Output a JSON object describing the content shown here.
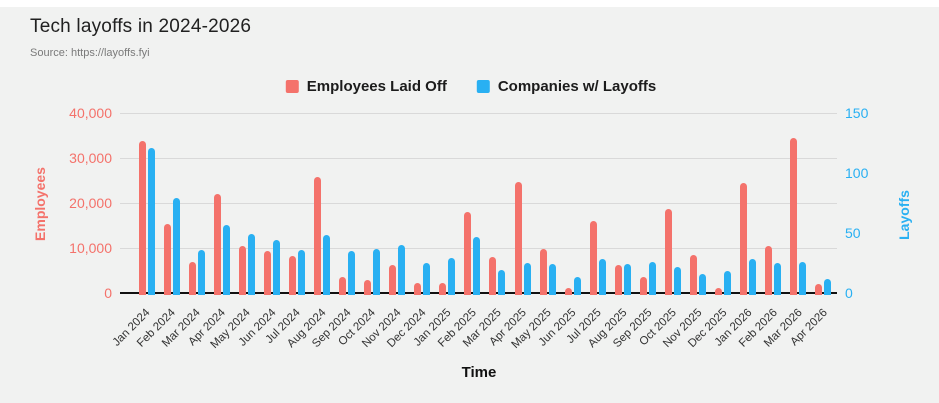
{
  "page": {
    "title": "Tech layoffs in 2024-2026",
    "source": "Source: https://layoffs.fyi"
  },
  "legend": [
    {
      "label": "Employees Laid Off",
      "color": "#f4726b"
    },
    {
      "label": "Companies w/ Layoffs",
      "color": "#29b0f2"
    }
  ],
  "axes": {
    "left": {
      "title": "Employees",
      "color": "#f4726b",
      "tick_labels": [
        "40,000",
        "30,000",
        "20,000",
        "10,000",
        "0"
      ],
      "tick_values": [
        40000,
        30000,
        20000,
        10000,
        0
      ],
      "max": 40000
    },
    "right": {
      "title": "Layoffs",
      "color": "#29b0f2",
      "tick_labels": [
        "150",
        "100",
        "50",
        "0"
      ],
      "tick_values": [
        150,
        100,
        50,
        0
      ],
      "max": 150
    },
    "x": {
      "title": "Time"
    }
  },
  "chart_data": {
    "type": "bar",
    "title": "Tech layoffs in 2024-2026",
    "subtitle": "Source: https://layoffs.fyi",
    "xlabel": "Time",
    "ylabel_left": "Employees",
    "ylabel_right": "Layoffs",
    "ylim_left": [
      0,
      40000
    ],
    "ylim_right": [
      0,
      150
    ],
    "grid": true,
    "legend_position": "top",
    "categories": [
      "Jan 2024",
      "Feb 2024",
      "Mar 2024",
      "Apr 2024",
      "May 2024",
      "Jun 2024",
      "Jul 2024",
      "Aug 2024",
      "Sep 2024",
      "Oct 2024",
      "Nov 2024",
      "Dec 2024",
      "Jan 2025",
      "Feb 2025",
      "Mar 2025",
      "Apr 2025",
      "May 2025",
      "Jun 2025",
      "Jul 2025",
      "Aug 2025",
      "Sep 2025",
      "Oct 2025",
      "Nov 2025",
      "Dec 2025",
      "Jan 2026",
      "Feb 2026",
      "Mar 2026",
      "Apr 2026"
    ],
    "series": [
      {
        "name": "Employees Laid Off",
        "axis": "left",
        "color": "#f4726b",
        "values": [
          33800,
          15400,
          7000,
          22100,
          10500,
          9400,
          8300,
          25700,
          3500,
          2800,
          6200,
          2200,
          2200,
          17900,
          8000,
          24600,
          9800,
          1200,
          16000,
          6200,
          3600,
          18700,
          8500,
          1200,
          24500,
          10500,
          34400,
          2000
        ]
      },
      {
        "name": "Companies w/ Layoffs",
        "axis": "right",
        "color": "#29b0f2",
        "values": [
          121,
          79,
          36,
          57,
          49,
          44,
          36,
          48,
          35,
          37,
          40,
          25,
          29,
          47,
          19,
          25,
          24,
          13,
          28,
          24,
          26,
          22,
          16,
          18,
          28,
          25,
          26,
          12
        ]
      }
    ]
  }
}
